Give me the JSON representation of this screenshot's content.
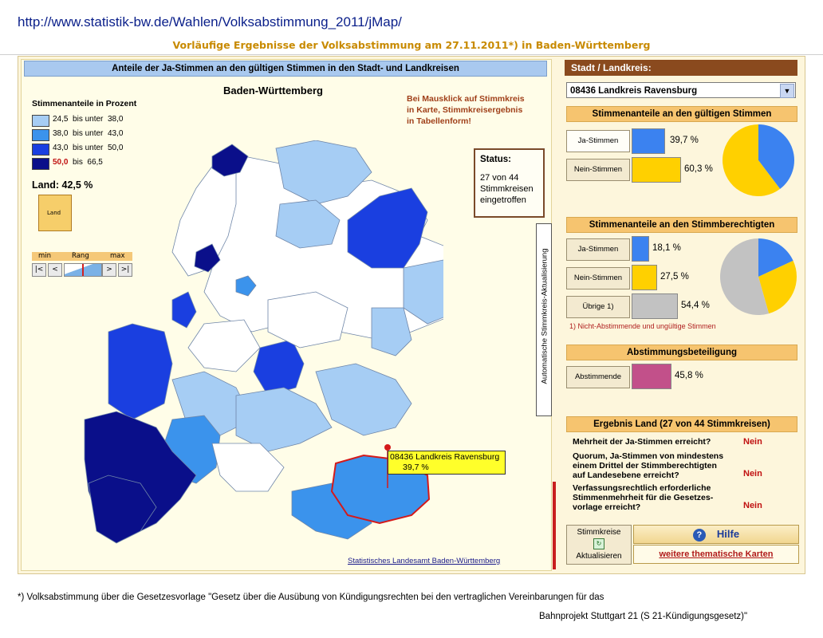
{
  "url": "http://www.statistik-bw.de/Wahlen/Volksabstimmung_2011/jMap/",
  "subtitle": "Vorläufige Ergebnisse der Volksabstimmung am 27.11.2011*) in Baden-Württemberg",
  "map": {
    "header": "Anteile der Ja-Stimmen an den gültigen Stimmen in den Stadt- und Landkreisen",
    "title": "Baden-Württemberg",
    "legend_title": "Stimmenanteile in Prozent",
    "legend": [
      {
        "from": "24,5",
        "to": "38,0",
        "color": "#a6cdf4"
      },
      {
        "from": "38,0",
        "to": "43,0",
        "color": "#3b93ec"
      },
      {
        "from": "43,0",
        "to": "50,0",
        "color": "#1a3fe0"
      },
      {
        "from": "50,0",
        "to": "66,5",
        "color": "#0a0f8a"
      }
    ],
    "legend_bis": "bis unter",
    "legend_bis_last": "bis",
    "land_label": "Land:  42,5 %",
    "land_icon_text": "Land",
    "rang": {
      "min": "min",
      "rang": "Rang",
      "max": "max",
      "first": "|<",
      "prev": "<",
      "next": ">",
      "last": ">|"
    },
    "info_text": [
      "Bei Mausklick auf Stimmkreis",
      "in Karte, Stimmkreisergebnis",
      "in Tabellenform!"
    ],
    "status_title": "Status:",
    "status_lines": [
      "27 von 44",
      "Stimmkreisen",
      "eingetroffen"
    ],
    "auto_update": "Automatische Stimmkreis-Aktualisierung",
    "source": "Statistisches Landesamt Baden-Württemberg",
    "tooltip_name": "08436 Landkreis Ravensburg",
    "tooltip_value": "39,7 %"
  },
  "right": {
    "kreis_header": "Stadt / Landkreis:",
    "kreis_selected": "08436 Landkreis Ravensburg",
    "gueltig_header": "Stimmenanteile an den gültigen Stimmen",
    "gueltig": [
      {
        "label": "Ja-Stimmen",
        "value": 39.7,
        "text": "39,7 %",
        "color": "#3b82f0"
      },
      {
        "label": "Nein-Stimmen",
        "value": 60.3,
        "text": "60,3 %",
        "color": "#ffd000"
      }
    ],
    "berechtigt_header": "Stimmenanteile an den Stimmberechtigten",
    "berechtigt": [
      {
        "label": "Ja-Stimmen",
        "value": 18.1,
        "text": "18,1 %",
        "color": "#3b82f0"
      },
      {
        "label": "Nein-Stimmen",
        "value": 27.5,
        "text": "27,5 %",
        "color": "#ffd000"
      },
      {
        "label": "Übrige 1)",
        "value": 54.4,
        "text": "54,4 %",
        "color": "#c2c2c2"
      }
    ],
    "note": "1) Nicht-Abstimmende und ungültige Stimmen",
    "beteiligung_header": "Abstimmungsbeteiligung",
    "beteiligung": {
      "label": "Abstimmende",
      "value": 45.8,
      "text": "45,8 %",
      "color": "#c2508a"
    },
    "ergebnis_header": "Ergebnis Land  (27 von 44 Stimmkreisen)",
    "questions": [
      {
        "q": [
          "Mehrheit der Ja-Stimmen erreicht?"
        ],
        "a": "Nein"
      },
      {
        "q": [
          "Quorum, Ja-Stimmen von mindestens",
          "einem Drittel der Stimmberechtigten",
          "auf Landesebene erreicht?"
        ],
        "a": "Nein"
      },
      {
        "q": [
          "Verfassungsrechtlich erforderliche",
          "Stimmenmehrheit für die Gesetzes-",
          "vorlage erreicht?"
        ],
        "a": "Nein"
      }
    ],
    "update_line1": "Stimmkreise",
    "update_line2": "Aktualisieren",
    "hilfe": "Hilfe",
    "karten": "weitere thematische Karten"
  },
  "footnote_line1": "*) Volksabstimmung über die Gesetzesvorlage \"Gesetz über die Ausübung von Kündigungsrechten bei den vertraglichen Vereinbarungen für das",
  "footnote_line2": "Bahnprojekt Stuttgart 21 (S 21-Kündigungsgesetz)\""
}
